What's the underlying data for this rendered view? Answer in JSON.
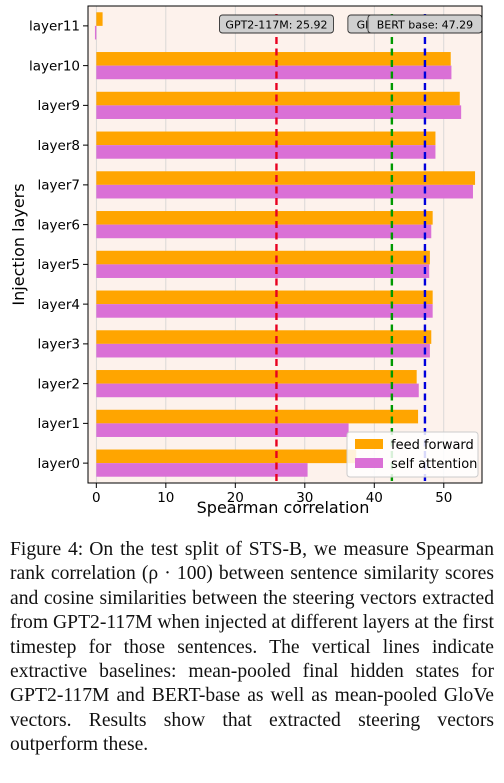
{
  "chart_data": {
    "type": "bar",
    "orientation": "horizontal",
    "categories": [
      "layer0",
      "layer1",
      "layer2",
      "layer3",
      "layer4",
      "layer5",
      "layer6",
      "layer7",
      "layer8",
      "layer9",
      "layer10",
      "layer11"
    ],
    "series": [
      {
        "name": "feed forward",
        "color": "#FFA500",
        "values": [
          37.4,
          46.3,
          46.1,
          48.2,
          48.4,
          48.0,
          48.4,
          54.5,
          48.8,
          52.3,
          51.0,
          0.9
        ]
      },
      {
        "name": "self attention",
        "color": "#DA70D6",
        "values": [
          30.4,
          36.3,
          46.4,
          48.0,
          48.4,
          47.9,
          48.2,
          54.2,
          48.8,
          52.5,
          51.1,
          -0.2
        ]
      }
    ],
    "xlabel": "Spearman correlation",
    "ylabel": "Injection layers",
    "xlim": [
      -1.2,
      55.5
    ],
    "xticks": [
      0,
      10,
      20,
      30,
      40,
      50
    ],
    "grid": true,
    "legend_position": "bottom-right",
    "background": "#FDF2EC",
    "baselines": [
      {
        "label": "GPT2-117M: 25.92",
        "value": 25.92,
        "color": "#E8001F"
      },
      {
        "label": "GloVe: 42.53",
        "value": 42.53,
        "color": "#009900"
      },
      {
        "label": "BERT base: 47.29",
        "value": 47.29,
        "color": "#0000DD"
      }
    ]
  },
  "caption": {
    "label": "Figure 4:",
    "text": "On the test split of STS-B, we measure Spearman rank correlation (ρ · 100) between sentence similarity scores and cosine similarities between the steering vectors extracted from GPT2-117M when injected at different layers at the first timestep for those sentences. The vertical lines indicate extractive baselines: mean-pooled final hidden states for GPT2-117M and BERT-base as well as mean-pooled GloVe vectors. Results show that extracted steering vectors outperform these."
  }
}
